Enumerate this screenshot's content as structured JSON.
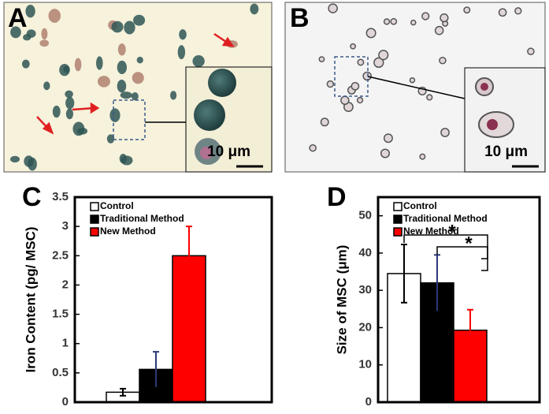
{
  "images": [
    {
      "panel_label": "A",
      "scale_label": "10 μm"
    },
    {
      "panel_label": "B",
      "scale_label": "10 μm"
    }
  ],
  "chart_data": [
    {
      "type": "bar",
      "panel_label": "C",
      "y_label": "Iron Content (pg/ MSC)",
      "ylim": [
        0,
        3.5
      ],
      "yticks": [
        0,
        0.5,
        1,
        1.5,
        2,
        2.5,
        3,
        3.5
      ],
      "series": [
        {
          "name": "Control",
          "color": "#ffffff",
          "values": [
            0.17
          ],
          "errors": [
            0.06
          ]
        },
        {
          "name": "Traditional Method",
          "color": "#000000",
          "values": [
            0.56
          ],
          "errors": [
            0.3
          ]
        },
        {
          "name": "New Method",
          "color": "#ff0000",
          "values": [
            2.5
          ],
          "errors": [
            0.5
          ]
        }
      ],
      "legend": "upper left"
    },
    {
      "type": "bar",
      "panel_label": "D",
      "y_label": "Size of MSC (μm)",
      "ylim": [
        0,
        55
      ],
      "yticks": [
        0,
        10,
        20,
        30,
        40,
        50
      ],
      "series": [
        {
          "name": "Control",
          "color": "#ffffff",
          "values": [
            34.5
          ],
          "errors": [
            7.8
          ]
        },
        {
          "name": "Traditional Method",
          "color": "#000000",
          "values": [
            32
          ],
          "errors": [
            7.5
          ]
        },
        {
          "name": "New Method",
          "color": "#ff0000",
          "values": [
            19.3
          ],
          "errors": [
            5.5
          ]
        }
      ],
      "legend": "upper left",
      "annotations": [
        "*",
        "*"
      ]
    }
  ]
}
